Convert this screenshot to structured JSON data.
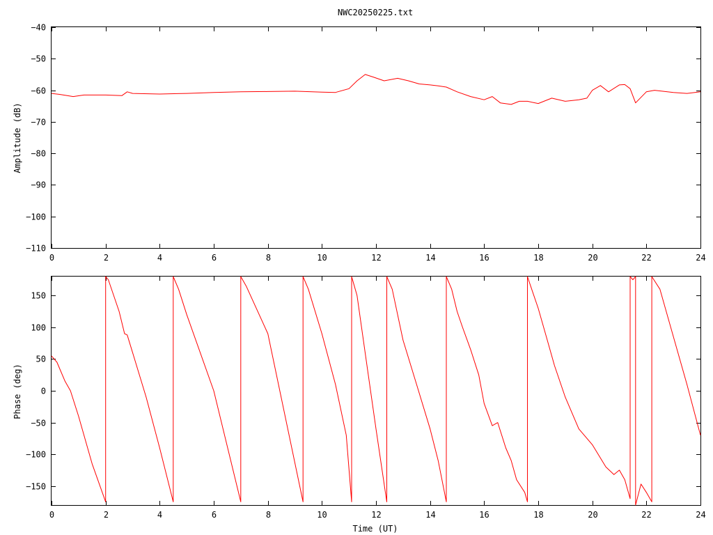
{
  "chart_data": [
    {
      "type": "line",
      "title": "NWC20250225.txt",
      "xlabel": "",
      "ylabel": "Amplitude (dB)",
      "xlim": [
        0,
        24
      ],
      "ylim": [
        -110,
        -40
      ],
      "xticks": [
        0,
        2,
        4,
        6,
        8,
        10,
        12,
        14,
        16,
        18,
        20,
        22,
        24
      ],
      "yticks": [
        -110,
        -100,
        -90,
        -80,
        -70,
        -60,
        -50,
        -40
      ],
      "grid": false,
      "color": "#ff0000",
      "series": [
        {
          "x": [
            0,
            0.3,
            0.8,
            1.2,
            2.0,
            2.6,
            2.8,
            3.0,
            4.0,
            5.0,
            6.0,
            7.0,
            8.0,
            9.0,
            10.0,
            10.5,
            11.0,
            11.3,
            11.6,
            11.9,
            12.3,
            12.8,
            13.2,
            13.6,
            14.0,
            14.3,
            14.6,
            15.0,
            15.5,
            16.0,
            16.3,
            16.6,
            17.0,
            17.3,
            17.6,
            18.0,
            18.5,
            19.0,
            19.5,
            19.8,
            20.0,
            20.3,
            20.6,
            21.0,
            21.2,
            21.4,
            21.6,
            22.0,
            22.3,
            23.0,
            23.5,
            24.0
          ],
          "y": [
            -61,
            -61.3,
            -62,
            -61.5,
            -61.5,
            -61.7,
            -60.5,
            -61,
            -61.2,
            -61,
            -60.7,
            -60.5,
            -60.4,
            -60.3,
            -60.6,
            -60.7,
            -59.5,
            -57,
            -55,
            -55.8,
            -57,
            -56.2,
            -57,
            -58,
            -58.3,
            -58.6,
            -59,
            -60.5,
            -62,
            -63,
            -62,
            -64,
            -64.5,
            -63.5,
            -63.5,
            -64.2,
            -62.5,
            -63.5,
            -63,
            -62.5,
            -60,
            -58.5,
            -60.5,
            -58.3,
            -58.2,
            -59.5,
            -64,
            -60.5,
            -60,
            -60.7,
            -61,
            -60.5
          ]
        }
      ]
    },
    {
      "type": "line",
      "title": "",
      "xlabel": "Time (UT)",
      "ylabel": "Phase (deg)",
      "xlim": [
        0,
        24
      ],
      "ylim": [
        -180,
        180
      ],
      "xticks": [
        0,
        2,
        4,
        6,
        8,
        10,
        12,
        14,
        16,
        18,
        20,
        22,
        24
      ],
      "yticks": [
        -150,
        -100,
        -50,
        0,
        50,
        100,
        150
      ],
      "grid": false,
      "color": "#ff0000",
      "series": [
        {
          "x": [
            0,
            0.2,
            0.5,
            0.7,
            1.0,
            1.5,
            2.0,
            2.0,
            2.1,
            2.5,
            2.7,
            2.8,
            3.0,
            3.5,
            4.0,
            4.5,
            4.5,
            4.7,
            5.0,
            6.0,
            7.0,
            7.0,
            7.2,
            8.0,
            9.3,
            9.3,
            9.5,
            10.0,
            10.5,
            10.9,
            11.1,
            11.1,
            11.3,
            11.7,
            12.0,
            12.4,
            12.4,
            12.6,
            13.0,
            13.5,
            14.0,
            14.3,
            14.6,
            14.6,
            14.8,
            15.0,
            15.2,
            15.5,
            15.8,
            16.0,
            16.3,
            16.5,
            16.8,
            17.0,
            17.2,
            17.5,
            17.6,
            17.6,
            17.8,
            18.0,
            18.3,
            18.6,
            19.0,
            19.5,
            20.0,
            20.5,
            20.8,
            21.0,
            21.2,
            21.4,
            21.4,
            21.5,
            21.6,
            21.6,
            21.8,
            22.0,
            22.2,
            22.2,
            22.5,
            23.0,
            23.5,
            24.0
          ],
          "y": [
            55,
            45,
            15,
            0,
            -40,
            -115,
            -175,
            180,
            175,
            125,
            90,
            88,
            60,
            -10,
            -90,
            -175,
            180,
            160,
            120,
            0,
            -175,
            180,
            165,
            90,
            -175,
            180,
            160,
            90,
            10,
            -70,
            -175,
            180,
            150,
            30,
            -60,
            -175,
            180,
            160,
            80,
            10,
            -60,
            -110,
            -175,
            180,
            160,
            125,
            100,
            65,
            25,
            -20,
            -55,
            -50,
            -90,
            -110,
            -140,
            -160,
            -175,
            180,
            155,
            130,
            85,
            40,
            -10,
            -60,
            -85,
            -120,
            -132,
            -125,
            -140,
            -170,
            180,
            175,
            180,
            -180,
            -147,
            -160,
            -175,
            180,
            160,
            85,
            10,
            -70
          ]
        }
      ]
    }
  ]
}
